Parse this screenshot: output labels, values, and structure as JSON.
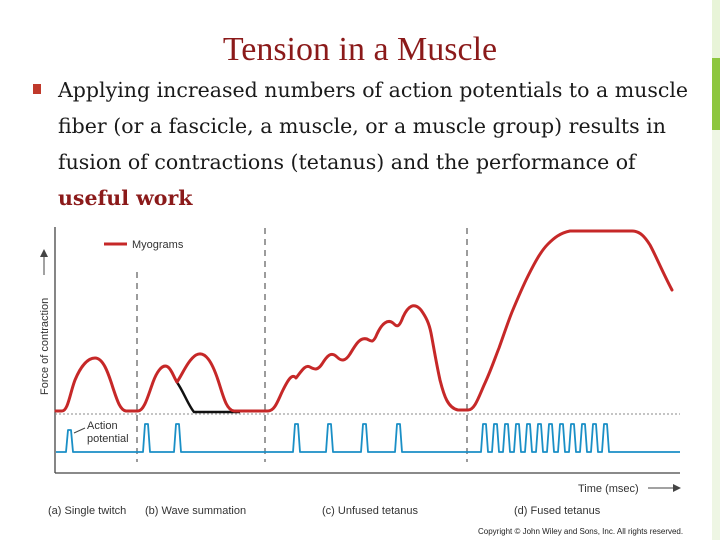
{
  "slide": {
    "title": "Tension in a Muscle",
    "bullet": {
      "text_before": "Applying increased numbers of action potentials to a muscle fiber (or a fascicle, a muscle, or a muscle group) results in fusion of contractions (tetanus) and the performance of ",
      "highlight": "useful work"
    },
    "copyright": "Copyright © John Wiley and Sons, Inc. All rights reserved."
  },
  "figure": {
    "legend_label": "Myograms",
    "y_axis_label": "Force of contraction",
    "action_potential_label_1": "Action",
    "action_potential_label_2": "potential",
    "x_axis_label": "Time (msec)",
    "panels": [
      "(a) Single twitch",
      "(b) Wave summation",
      "(c) Unfused tetanus",
      "(d) Fused tetanus"
    ]
  },
  "colors": {
    "title": "#8b1a1a",
    "myogram": "#c62828",
    "action_potential": "#1a8fc6",
    "single_twitch_decay": "#111111",
    "side_bar_green": "#8dc63f",
    "bullet": "#c0392b"
  }
}
